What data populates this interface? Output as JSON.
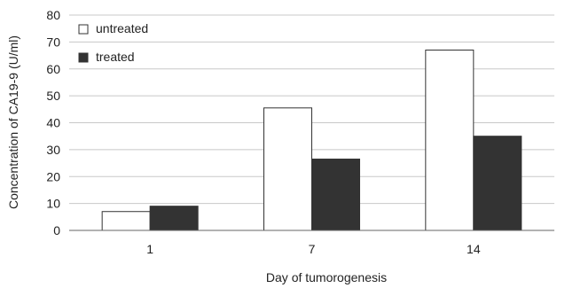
{
  "chart_data": {
    "type": "bar",
    "title": "",
    "xlabel": "Day of tumorogenesis",
    "ylabel": "Concentration of CA19-9 (U/ml)",
    "categories": [
      "1",
      "7",
      "14"
    ],
    "ylim": [
      0,
      80
    ],
    "yticks": [
      "0",
      "10",
      "20",
      "30",
      "40",
      "50",
      "60",
      "70",
      "80"
    ],
    "grid": true,
    "legend_position": "top-left",
    "series": [
      {
        "name": "untreated",
        "values": [
          7,
          45.5,
          67
        ],
        "color": "#ffffff"
      },
      {
        "name": "treated",
        "values": [
          9,
          26.5,
          35
        ],
        "color": "#333333"
      }
    ]
  }
}
